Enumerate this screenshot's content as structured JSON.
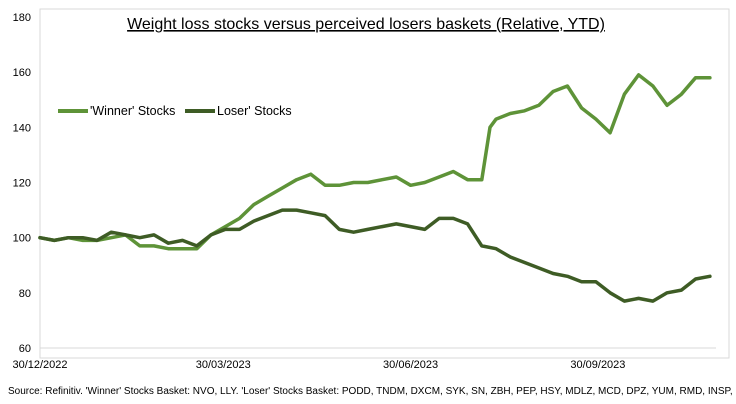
{
  "chart_data": {
    "type": "line",
    "title": "Weight loss stocks versus perceived losers baskets (Relative, YTD)",
    "xlabel": "",
    "ylabel": "",
    "x_ticks": [
      "30/12/2022",
      "30/03/2023",
      "30/06/2023",
      "30/09/2023"
    ],
    "ylim": [
      60,
      180
    ],
    "y_ticks": [
      60,
      80,
      100,
      120,
      140,
      160,
      180
    ],
    "grid": false,
    "legend_position": "left, center",
    "series": [
      {
        "name": "'Winner' Stocks",
        "color": "#5e9338",
        "x": [
          "2022-12-30",
          "2023-01-06",
          "2023-01-13",
          "2023-01-20",
          "2023-01-27",
          "2023-02-03",
          "2023-02-10",
          "2023-02-17",
          "2023-02-24",
          "2023-03-03",
          "2023-03-10",
          "2023-03-17",
          "2023-03-24",
          "2023-03-31",
          "2023-04-07",
          "2023-04-14",
          "2023-04-21",
          "2023-04-28",
          "2023-05-05",
          "2023-05-12",
          "2023-05-19",
          "2023-05-26",
          "2023-06-02",
          "2023-06-09",
          "2023-06-16",
          "2023-06-23",
          "2023-06-30",
          "2023-07-07",
          "2023-07-14",
          "2023-07-21",
          "2023-07-28",
          "2023-08-04",
          "2023-08-08",
          "2023-08-11",
          "2023-08-18",
          "2023-08-25",
          "2023-09-01",
          "2023-09-08",
          "2023-09-15",
          "2023-09-22",
          "2023-09-29",
          "2023-10-06",
          "2023-10-13",
          "2023-10-20",
          "2023-10-27",
          "2023-11-03",
          "2023-11-10",
          "2023-11-17",
          "2023-11-24"
        ],
        "values": [
          100,
          99,
          100,
          99,
          99,
          100,
          101,
          97,
          97,
          96,
          96,
          96,
          101,
          104,
          107,
          112,
          115,
          118,
          121,
          123,
          119,
          119,
          120,
          120,
          121,
          122,
          119,
          120,
          122,
          124,
          121,
          121,
          140,
          143,
          145,
          146,
          148,
          153,
          155,
          147,
          143,
          138,
          152,
          159,
          155,
          148,
          152,
          158,
          158
        ]
      },
      {
        "name": "Loser' Stocks",
        "color": "#3e5c25",
        "x": [
          "2022-12-30",
          "2023-01-06",
          "2023-01-13",
          "2023-01-20",
          "2023-01-27",
          "2023-02-03",
          "2023-02-10",
          "2023-02-17",
          "2023-02-24",
          "2023-03-03",
          "2023-03-10",
          "2023-03-17",
          "2023-03-24",
          "2023-03-31",
          "2023-04-07",
          "2023-04-14",
          "2023-04-21",
          "2023-04-28",
          "2023-05-05",
          "2023-05-12",
          "2023-05-19",
          "2023-05-26",
          "2023-06-02",
          "2023-06-09",
          "2023-06-16",
          "2023-06-23",
          "2023-06-30",
          "2023-07-07",
          "2023-07-14",
          "2023-07-21",
          "2023-07-28",
          "2023-08-04",
          "2023-08-11",
          "2023-08-18",
          "2023-08-25",
          "2023-09-01",
          "2023-09-08",
          "2023-09-15",
          "2023-09-22",
          "2023-09-29",
          "2023-10-06",
          "2023-10-13",
          "2023-10-20",
          "2023-10-27",
          "2023-11-03",
          "2023-11-10",
          "2023-11-17",
          "2023-11-24"
        ],
        "values": [
          100,
          99,
          100,
          100,
          99,
          102,
          101,
          100,
          101,
          98,
          99,
          97,
          101,
          103,
          103,
          106,
          108,
          110,
          110,
          109,
          108,
          103,
          102,
          103,
          104,
          105,
          104,
          103,
          107,
          107,
          105,
          97,
          96,
          93,
          91,
          89,
          87,
          86,
          84,
          84,
          80,
          77,
          78,
          77,
          80,
          81,
          85,
          86
        ]
      }
    ]
  },
  "source_note": "Source: Refinitiv. 'Winner' Stocks Basket: NVO, LLY. 'Loser' Stocks Basket: PODD, TNDM, DXCM, SYK, SN, ZBH, PEP, HSY, MDLZ, MCD, DPZ, YUM, RMD, INSP, MDGL"
}
